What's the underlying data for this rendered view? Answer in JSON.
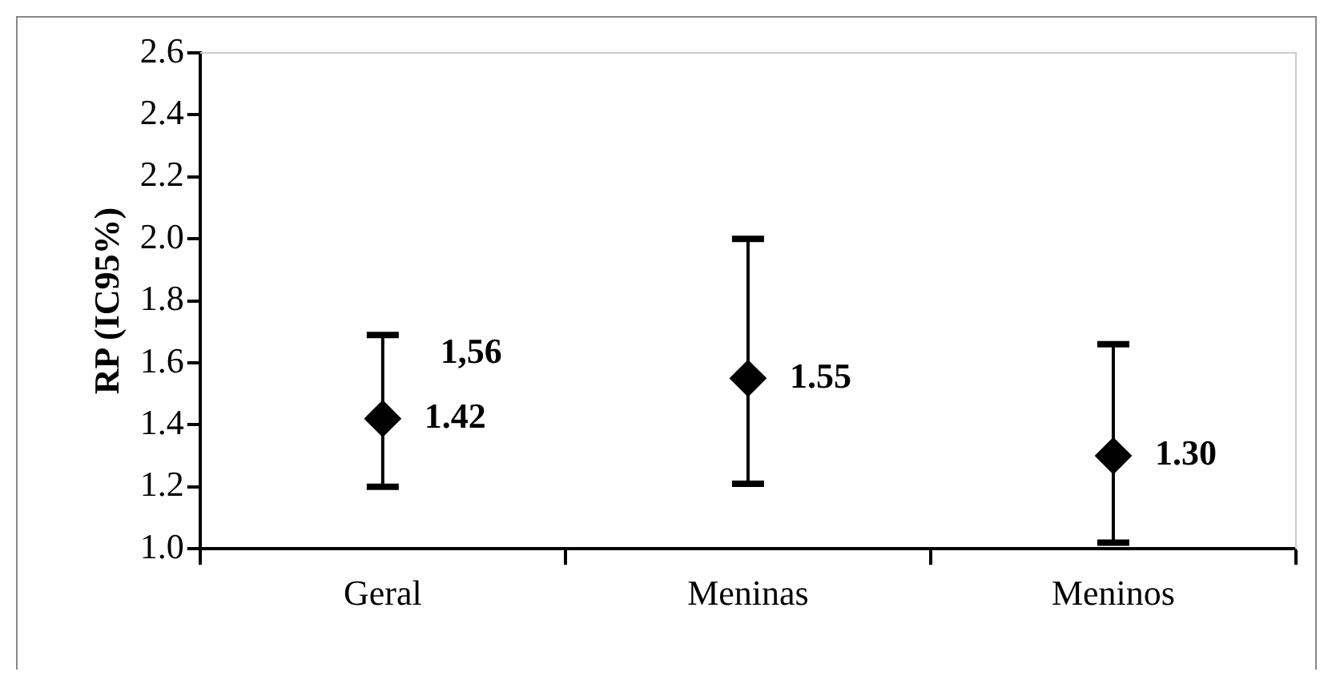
{
  "chart_data": {
    "type": "scatter",
    "ylabel": "RP (IC95%)",
    "categories": [
      "Geral",
      "Meninas",
      "Meninos"
    ],
    "values": [
      1.42,
      1.55,
      1.3
    ],
    "errors": [
      [
        1.2,
        1.69
      ],
      [
        1.21,
        2.0
      ],
      [
        1.02,
        1.66
      ]
    ],
    "value_labels": [
      "1.42",
      "1.55",
      "1.30"
    ],
    "color": "#000000",
    "marker": "diamond",
    "grid": false,
    "legend": false,
    "ylim": [
      1.0,
      2.6
    ],
    "yticks": [
      {
        "value": 1.0,
        "label": "1.0"
      },
      {
        "value": 1.2,
        "label": "1.2"
      },
      {
        "value": 1.4,
        "label": "1.4"
      },
      {
        "value": 1.6,
        "label": "1.6"
      },
      {
        "value": 1.8,
        "label": "1.8"
      },
      {
        "value": 2.0,
        "label": "2.0"
      },
      {
        "value": 2.2,
        "label": "2.2"
      },
      {
        "value": 2.4,
        "label": "2.4"
      },
      {
        "value": 2.6,
        "label": "2.6"
      }
    ],
    "annotations": [
      {
        "text": "1,56",
        "x": "Geral",
        "y": 1.63
      }
    ]
  }
}
